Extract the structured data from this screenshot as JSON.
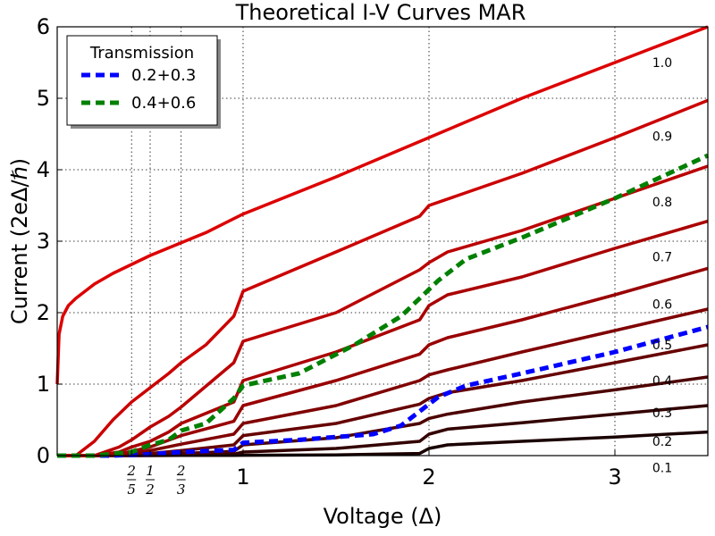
{
  "chart_data": {
    "type": "line",
    "title": "Theoretical I-V Curves MAR",
    "xlabel": "Voltage (Δ)",
    "ylabel": "Current (2eΔ/ℏ)",
    "xlim": [
      0,
      3.5
    ],
    "ylim": [
      0,
      6
    ],
    "x_ticks": [
      {
        "value": 1,
        "label": "1"
      },
      {
        "value": 2,
        "label": "2"
      },
      {
        "value": 3,
        "label": "3"
      }
    ],
    "x_fraction_ticks": [
      {
        "value": 0.4,
        "num": "2",
        "den": "5"
      },
      {
        "value": 0.5,
        "num": "1",
        "den": "2"
      },
      {
        "value": 0.6667,
        "num": "2",
        "den": "3"
      }
    ],
    "y_ticks": [
      0,
      1,
      2,
      3,
      4,
      5,
      6
    ],
    "grid": true,
    "legend": {
      "title": "Transmission",
      "placement": "top-left",
      "entries": [
        {
          "label": "0.2+0.3",
          "color": "#0000ff"
        },
        {
          "label": "0.4+0.6",
          "color": "#008000"
        }
      ]
    },
    "series": [
      {
        "label": "0.1",
        "color": "#1a0000",
        "dash": false,
        "x": [
          0,
          0.5,
          0.667,
          0.95,
          1.0,
          1.5,
          1.95,
          2.0,
          2.1,
          2.5,
          3.0,
          3.5
        ],
        "y": [
          0,
          0,
          0.002,
          0.003,
          0.005,
          0.01,
          0.03,
          0.1,
          0.15,
          0.2,
          0.26,
          0.33
        ]
      },
      {
        "label": "0.2",
        "color": "#330000",
        "dash": false,
        "x": [
          0,
          0.4,
          0.5,
          0.667,
          0.95,
          1.0,
          1.5,
          1.95,
          2.0,
          2.1,
          2.5,
          3.0,
          3.5
        ],
        "y": [
          0,
          0,
          0.003,
          0.01,
          0.02,
          0.05,
          0.1,
          0.2,
          0.3,
          0.37,
          0.46,
          0.58,
          0.7
        ]
      },
      {
        "label": "0.3",
        "color": "#4d0000",
        "dash": false,
        "x": [
          0,
          0.3,
          0.4,
          0.5,
          0.667,
          0.95,
          1.0,
          1.5,
          1.95,
          2.0,
          2.1,
          2.5,
          3.0,
          3.5
        ],
        "y": [
          0,
          0,
          0.003,
          0.01,
          0.03,
          0.06,
          0.15,
          0.25,
          0.45,
          0.52,
          0.58,
          0.75,
          0.92,
          1.1
        ]
      },
      {
        "label": "0.4",
        "color": "#660000",
        "dash": false,
        "x": [
          0,
          0.25,
          0.4,
          0.5,
          0.667,
          0.95,
          1.0,
          1.5,
          1.95,
          2.0,
          2.1,
          2.5,
          3.0,
          3.5
        ],
        "y": [
          0,
          0,
          0.01,
          0.03,
          0.07,
          0.15,
          0.28,
          0.45,
          0.72,
          0.8,
          0.88,
          1.05,
          1.3,
          1.55
        ]
      },
      {
        "label": "0.5",
        "color": "#800000",
        "dash": false,
        "x": [
          0,
          0.2,
          0.333,
          0.4,
          0.5,
          0.667,
          0.95,
          1.0,
          1.5,
          1.95,
          2.0,
          2.1,
          2.5,
          3.0,
          3.5
        ],
        "y": [
          0,
          0,
          0.01,
          0.03,
          0.07,
          0.16,
          0.3,
          0.45,
          0.7,
          1.05,
          1.13,
          1.2,
          1.45,
          1.75,
          2.05
        ]
      },
      {
        "label": "0.6",
        "color": "#990000",
        "dash": false,
        "x": [
          0,
          0.2,
          0.333,
          0.4,
          0.5,
          0.667,
          0.95,
          1.0,
          1.5,
          1.95,
          2.0,
          2.1,
          2.5,
          3.0,
          3.5
        ],
        "y": [
          0,
          0,
          0.02,
          0.06,
          0.12,
          0.28,
          0.48,
          0.7,
          1.05,
          1.42,
          1.55,
          1.65,
          1.9,
          2.25,
          2.62
        ]
      },
      {
        "label": "0.7",
        "color": "#aa0000",
        "dash": false,
        "x": [
          0,
          0.2,
          0.333,
          0.4,
          0.5,
          0.6,
          0.667,
          0.95,
          1.0,
          1.5,
          1.95,
          2.0,
          2.1,
          2.5,
          3.0,
          3.5
        ],
        "y": [
          0,
          0,
          0.05,
          0.12,
          0.2,
          0.33,
          0.45,
          0.75,
          1.05,
          1.45,
          1.9,
          2.1,
          2.25,
          2.5,
          2.9,
          3.28
        ]
      },
      {
        "label": "0.8",
        "color": "#bb0000",
        "dash": false,
        "x": [
          0,
          0.2,
          0.333,
          0.4,
          0.5,
          0.6,
          0.667,
          0.95,
          1.0,
          1.5,
          1.95,
          2.0,
          2.1,
          2.5,
          3.0,
          3.5
        ],
        "y": [
          0,
          0,
          0.12,
          0.22,
          0.4,
          0.55,
          0.68,
          1.3,
          1.6,
          2.0,
          2.6,
          2.7,
          2.85,
          3.15,
          3.6,
          4.05
        ]
      },
      {
        "label": "0.9",
        "color": "#cc0000",
        "dash": false,
        "x": [
          0,
          0.1,
          0.2,
          0.3,
          0.4,
          0.5,
          0.6,
          0.667,
          0.8,
          0.95,
          1.0,
          1.5,
          1.95,
          2.0,
          2.5,
          3.0,
          3.5
        ],
        "y": [
          0,
          0,
          0.2,
          0.5,
          0.75,
          0.95,
          1.15,
          1.3,
          1.55,
          1.95,
          2.3,
          2.85,
          3.35,
          3.5,
          3.95,
          4.45,
          4.97
        ]
      },
      {
        "label": "1.0",
        "color": "#dd0000",
        "dash": false,
        "x": [
          0,
          0.01,
          0.03,
          0.06,
          0.1,
          0.15,
          0.2,
          0.3,
          0.5,
          0.8,
          1.0,
          1.5,
          2.0,
          2.5,
          3.0,
          3.5
        ],
        "y": [
          1.0,
          1.7,
          1.95,
          2.1,
          2.2,
          2.3,
          2.4,
          2.55,
          2.8,
          3.12,
          3.38,
          3.9,
          4.45,
          5.0,
          5.5,
          6.0
        ]
      },
      {
        "label": "0.2+0.3",
        "color": "#0000ff",
        "dash": true,
        "x": [
          0,
          0.3,
          0.5,
          0.667,
          0.95,
          1.0,
          1.3,
          1.7,
          1.85,
          1.95,
          2.05,
          2.2,
          2.5,
          3.0,
          3.5
        ],
        "y": [
          0,
          0,
          0.02,
          0.05,
          0.08,
          0.18,
          0.22,
          0.3,
          0.42,
          0.62,
          0.82,
          0.98,
          1.15,
          1.45,
          1.8
        ]
      },
      {
        "label": "0.4+0.6",
        "color": "#008000",
        "dash": true,
        "x": [
          0,
          0.2,
          0.4,
          0.5,
          0.6,
          0.667,
          0.8,
          0.95,
          1.0,
          1.3,
          1.6,
          1.85,
          1.95,
          2.05,
          2.2,
          2.5,
          3.0,
          3.5
        ],
        "y": [
          0,
          0,
          0.05,
          0.15,
          0.22,
          0.35,
          0.45,
          0.8,
          0.98,
          1.15,
          1.55,
          1.95,
          2.2,
          2.45,
          2.75,
          3.05,
          3.6,
          4.2
        ]
      }
    ]
  }
}
